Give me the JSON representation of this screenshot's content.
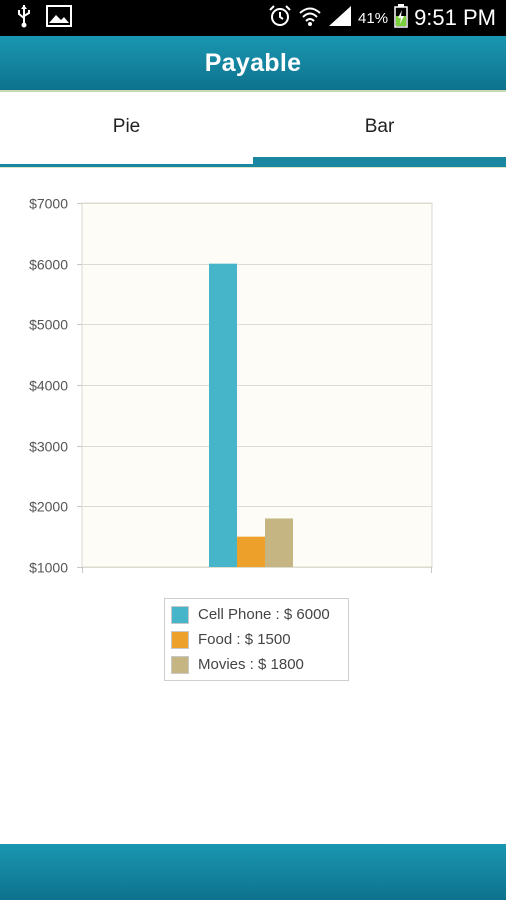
{
  "status_bar": {
    "battery_percent": "41%",
    "time": "9:51 PM",
    "icons": [
      "usb-icon",
      "image-icon",
      "alarm-icon",
      "wifi-icon",
      "signal-icon",
      "battery-charging-icon"
    ]
  },
  "header": {
    "title": "Payable"
  },
  "tabs": [
    {
      "label": "Pie",
      "active": false
    },
    {
      "label": "Bar",
      "active": true
    }
  ],
  "chart_data": {
    "type": "bar",
    "title": "",
    "xlabel": "",
    "ylabel": "",
    "ylim": [
      1000,
      7000
    ],
    "ytick_labels": [
      "$7000",
      "$6000",
      "$5000",
      "$4000",
      "$3000",
      "$2000",
      "$1000"
    ],
    "ytick_values": [
      7000,
      6000,
      5000,
      4000,
      3000,
      2000,
      1000
    ],
    "grid": true,
    "legend_placement": "bottom",
    "series": [
      {
        "name": "Cell Phone : $ 6000",
        "value": 6000,
        "color": "#47b5c9"
      },
      {
        "name": "Food : $ 1500",
        "value": 1500,
        "color": "#eea12a"
      },
      {
        "name": "Movies : $ 1800",
        "value": 1800,
        "color": "#c4b583"
      }
    ]
  },
  "colors": {
    "header": "#1585a1",
    "plot_background": "#fdfcf6",
    "grid": "#dedcd0",
    "axis_text": "#555555"
  }
}
